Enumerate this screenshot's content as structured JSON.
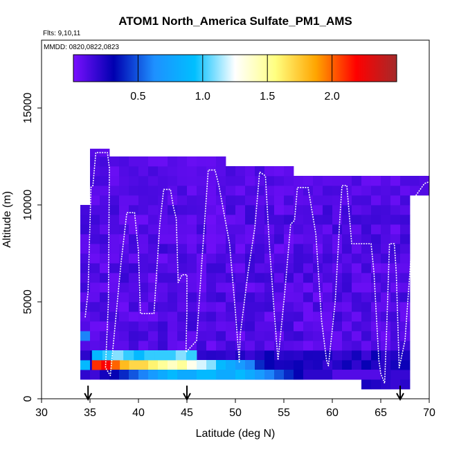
{
  "chart_data": {
    "type": "heatmap",
    "title": "ATOM1 North_America Sulfate_PM1_AMS",
    "flights_label": "Flts: 9,10,11",
    "dates_label": "MMDD: 0820,0822,0823",
    "xlabel": "Latitude (deg N)",
    "ylabel": "Altitude (m)",
    "xlim": [
      30,
      70
    ],
    "ylim": [
      0,
      18500
    ],
    "x_ticks": [
      "30",
      "35",
      "40",
      "45",
      "50",
      "55",
      "60",
      "65",
      "70"
    ],
    "y_ticks": [
      "0",
      "5000",
      "10000",
      "15000"
    ],
    "colorbar": {
      "range": [
        0,
        2.5
      ],
      "ticks": [
        "0.5",
        "1.0",
        "1.5",
        "2.0"
      ],
      "colors": [
        "#7a10ff",
        "#0000b0",
        "#1e90ff",
        "#00bfff",
        "#ffffff",
        "#ffff80",
        "#ffa500",
        "#ff0000",
        "#a52a2a"
      ]
    },
    "arrows_latitude": [
      34.8,
      45.0,
      67.0
    ],
    "columns": [
      {
        "lat0": 34,
        "lat1": 35,
        "ymin": 1000,
        "ymax": 10000,
        "values": {
          "1500": 0.9,
          "2000": 0.2,
          "2500": 0.1,
          "3000": 0.6
        }
      },
      {
        "lat0": 35,
        "lat1": 37,
        "ymin": 1000,
        "ymax": 12900
      },
      {
        "lat0": 37,
        "lat1": 49,
        "ymin": 1000,
        "ymax": 12500
      },
      {
        "lat0": 49,
        "lat1": 56,
        "ymin": 1000,
        "ymax": 12000
      },
      {
        "lat0": 56,
        "lat1": 63,
        "ymin": 1000,
        "ymax": 11500
      },
      {
        "lat0": 63,
        "lat1": 68,
        "ymin": 500,
        "ymax": 11500
      },
      {
        "lat0": 68,
        "lat1": 70,
        "ymin": 10500,
        "ymax": 11500
      }
    ],
    "bands": [
      {
        "lat0": 35.2,
        "lat1": 40,
        "alt0": 1500,
        "alt1": 2000,
        "values": [
          2.1,
          2.2,
          2.0,
          1.8,
          1.7
        ]
      },
      {
        "lat0": 40,
        "lat1": 46,
        "alt0": 1500,
        "alt1": 2000,
        "values": [
          1.7,
          1.6,
          1.5,
          1.4,
          1.5,
          1.3
        ]
      },
      {
        "lat0": 46,
        "lat1": 54,
        "alt0": 1500,
        "alt1": 2000,
        "values": [
          1.2,
          1.1,
          0.9,
          0.8,
          0.7,
          0.6,
          0.4,
          0.3
        ]
      },
      {
        "lat0": 35.2,
        "lat1": 46,
        "alt0": 2000,
        "alt1": 2500,
        "values": [
          0.9,
          1.0,
          1.1,
          1.0,
          0.9,
          1.0,
          1.0,
          1.0,
          1.1,
          1.0
        ]
      },
      {
        "lat0": 37,
        "lat1": 66,
        "alt0": 1000,
        "alt1": 1500,
        "values": [
          0.3,
          0.4,
          0.5,
          0.6,
          0.7,
          0.8,
          0.9,
          0.8,
          0.8,
          0.9,
          0.9,
          0.8,
          0.8,
          0.9,
          0.8,
          0.7,
          0.6,
          0.5,
          0.4,
          0.3,
          0.2,
          0.2,
          0.2,
          0.1,
          0.1,
          0.1,
          0.1,
          0.1,
          0.2
        ]
      }
    ],
    "flight_track": [
      [
        34.5,
        4200
      ],
      [
        34.8,
        5500
      ],
      [
        35.1,
        10900
      ],
      [
        35.3,
        11000
      ],
      [
        35.6,
        12700
      ],
      [
        36.8,
        12700
      ],
      [
        37.0,
        11900
      ],
      [
        36.9,
        5000
      ],
      [
        36.6,
        1600
      ],
      [
        37.1,
        1200
      ],
      [
        38.2,
        7000
      ],
      [
        38.8,
        9600
      ],
      [
        39.6,
        9600
      ],
      [
        40.0,
        7600
      ],
      [
        40.2,
        4400
      ],
      [
        41.6,
        4400
      ],
      [
        42.2,
        9000
      ],
      [
        42.6,
        10800
      ],
      [
        43.3,
        10800
      ],
      [
        43.6,
        9900
      ],
      [
        43.9,
        9300
      ],
      [
        44.1,
        6000
      ],
      [
        44.5,
        6400
      ],
      [
        45.0,
        6400
      ],
      [
        45.0,
        4500
      ],
      [
        44.9,
        2400
      ],
      [
        46.0,
        3000
      ],
      [
        46.6,
        7500
      ],
      [
        47.2,
        11800
      ],
      [
        47.9,
        11800
      ],
      [
        48.3,
        11000
      ],
      [
        49.4,
        8000
      ],
      [
        50.0,
        4500
      ],
      [
        50.4,
        1900
      ],
      [
        50.5,
        3300
      ],
      [
        51.3,
        6500
      ],
      [
        52.0,
        8800
      ],
      [
        52.5,
        11700
      ],
      [
        53.1,
        11500
      ],
      [
        53.5,
        8000
      ],
      [
        54.0,
        4500
      ],
      [
        54.4,
        2000
      ],
      [
        55.1,
        5500
      ],
      [
        55.7,
        9000
      ],
      [
        56.1,
        9200
      ],
      [
        56.4,
        10900
      ],
      [
        57.5,
        10900
      ],
      [
        58.3,
        8500
      ],
      [
        58.9,
        4000
      ],
      [
        59.4,
        2000
      ],
      [
        59.6,
        1700
      ],
      [
        60.3,
        5000
      ],
      [
        60.8,
        9500
      ],
      [
        61.0,
        11000
      ],
      [
        61.5,
        11000
      ],
      [
        62.0,
        8000
      ],
      [
        64.0,
        8000
      ],
      [
        64.3,
        6500
      ],
      [
        64.8,
        2000
      ],
      [
        65.0,
        1300
      ],
      [
        65.4,
        800
      ],
      [
        65.6,
        3500
      ],
      [
        65.9,
        8000
      ],
      [
        66.4,
        8000
      ],
      [
        66.6,
        6500
      ],
      [
        66.9,
        1600
      ],
      [
        67.5,
        3000
      ],
      [
        68.0,
        6500
      ],
      [
        68.5,
        10400
      ],
      [
        69.5,
        11100
      ],
      [
        70.0,
        11200
      ]
    ]
  }
}
